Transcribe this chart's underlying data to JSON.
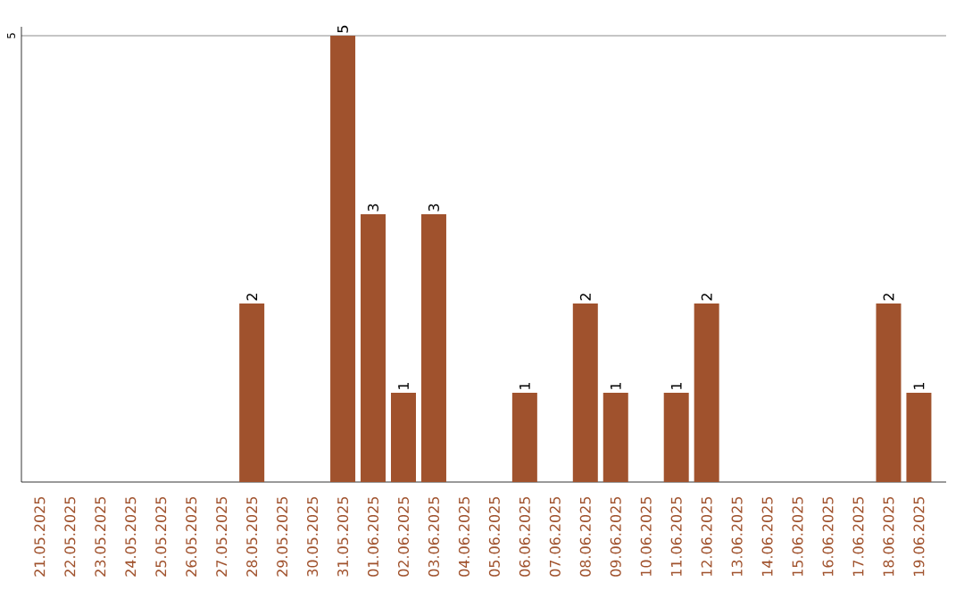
{
  "chart_data": {
    "type": "bar",
    "categories": [
      "21.05.2025",
      "22.05.2025",
      "23.05.2025",
      "24.05.2025",
      "25.05.2025",
      "26.05.2025",
      "27.05.2025",
      "28.05.2025",
      "29.05.2025",
      "30.05.2025",
      "31.05.2025",
      "01.06.2025",
      "02.06.2025",
      "03.06.2025",
      "04.06.2025",
      "05.06.2025",
      "06.06.2025",
      "07.06.2025",
      "08.06.2025",
      "09.06.2025",
      "10.06.2025",
      "11.06.2025",
      "12.06.2025",
      "13.06.2025",
      "14.06.2025",
      "15.06.2025",
      "16.06.2025",
      "17.06.2025",
      "18.06.2025",
      "19.06.2025"
    ],
    "values": [
      0,
      0,
      0,
      0,
      0,
      0,
      0,
      2,
      0,
      0,
      5,
      3,
      1,
      3,
      0,
      0,
      1,
      0,
      2,
      1,
      0,
      1,
      2,
      0,
      0,
      0,
      0,
      0,
      2,
      1
    ],
    "value_labels": [
      null,
      null,
      null,
      null,
      null,
      null,
      null,
      "2",
      null,
      null,
      "5",
      "3",
      "1",
      "3",
      null,
      null,
      "1",
      null,
      "2",
      "1",
      null,
      "1",
      "2",
      null,
      null,
      null,
      null,
      null,
      "2",
      "1"
    ],
    "color": "#a0522d",
    "ylim": [
      0,
      5.1
    ],
    "yticks": [
      5
    ],
    "grid": "y"
  }
}
